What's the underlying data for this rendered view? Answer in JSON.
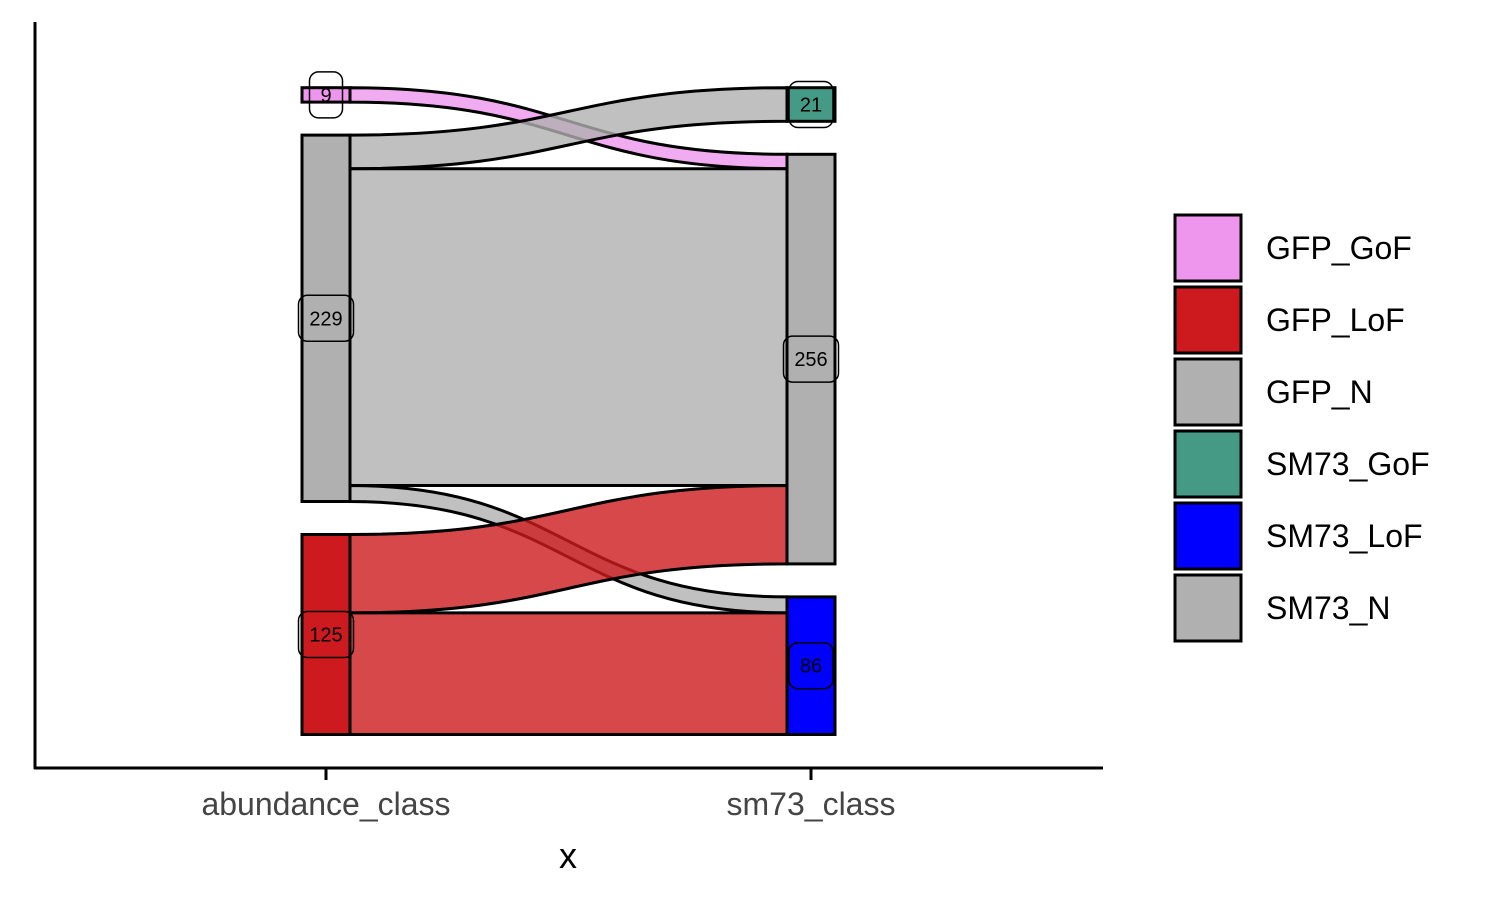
{
  "chart_data": {
    "type": "alluvial",
    "xlabel": "x",
    "ylabel": "",
    "axes": [
      "abundance_class",
      "sm73_class"
    ],
    "strata": [
      {
        "axis": 0,
        "name": "GFP_GoF",
        "count": 9,
        "label": "9"
      },
      {
        "axis": 0,
        "name": "GFP_N",
        "count": 229,
        "label": "229"
      },
      {
        "axis": 0,
        "name": "GFP_LoF",
        "count": 125,
        "label": "125"
      },
      {
        "axis": 1,
        "name": "SM73_GoF",
        "count": 21,
        "label": "21"
      },
      {
        "axis": 1,
        "name": "SM73_N",
        "count": 256,
        "label": "256"
      },
      {
        "axis": 1,
        "name": "SM73_LoF",
        "count": 86,
        "label": "86"
      }
    ],
    "flows": [
      {
        "from": "GFP_GoF",
        "to": "SM73_N",
        "count": 9
      },
      {
        "from": "GFP_N",
        "to": "SM73_GoF",
        "count": 21
      },
      {
        "from": "GFP_N",
        "to": "SM73_N",
        "count": 198
      },
      {
        "from": "GFP_N",
        "to": "SM73_LoF",
        "count": 10
      },
      {
        "from": "GFP_LoF",
        "to": "SM73_N",
        "count": 49
      },
      {
        "from": "GFP_LoF",
        "to": "SM73_LoF",
        "count": 76
      }
    ],
    "legend": {
      "position": "right",
      "entries": [
        "GFP_GoF",
        "GFP_LoF",
        "GFP_N",
        "SM73_GoF",
        "SM73_LoF",
        "SM73_N"
      ]
    },
    "colors": {
      "GFP_GoF": "#EE96EE",
      "GFP_LoF": "#CD1A1E",
      "GFP_N": "#B0B0B0",
      "SM73_GoF": "#459A86",
      "SM73_LoF": "#0000FF",
      "SM73_N": "#B0B0B0"
    },
    "grid": false
  }
}
